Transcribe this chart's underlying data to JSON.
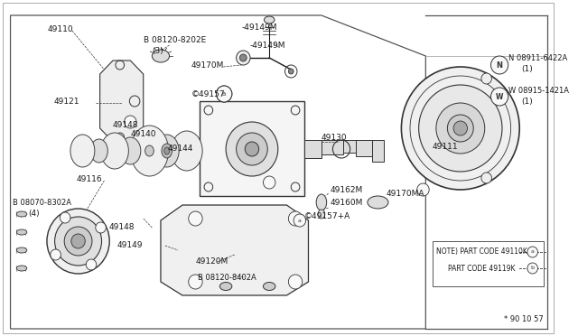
{
  "bg_color": "#ffffff",
  "line_color": "#1a1a1a",
  "text_color": "#1a1a1a",
  "figsize": [
    6.4,
    3.72
  ],
  "dpi": 100,
  "note_text1": "NOTE) PART CODE 49110K",
  "note_text2": "PART CODE 49119K",
  "timestamp": "* 90 10 57"
}
